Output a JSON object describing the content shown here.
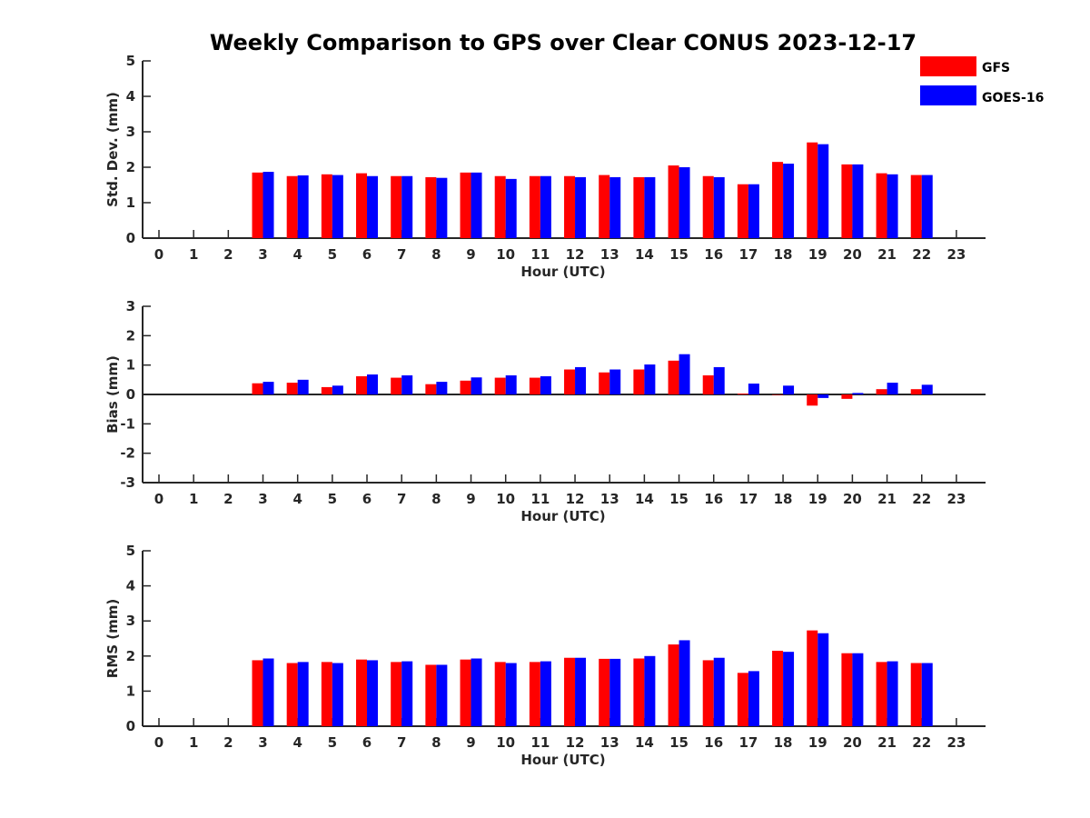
{
  "colors": {
    "gfs": "#ff0000",
    "goes": "#0000ff",
    "axis": "#262626"
  },
  "chart_data": {
    "type": "bar",
    "title": "Weekly Comparison to GPS over Clear CONUS 2023-12-17",
    "legend": {
      "placement": "top-right",
      "entries": [
        {
          "name": "GFS",
          "color": "#ff0000"
        },
        {
          "name": "GOES-16",
          "color": "#0000ff"
        }
      ]
    },
    "categories": [
      "0",
      "1",
      "2",
      "3",
      "4",
      "5",
      "6",
      "7",
      "8",
      "9",
      "10",
      "11",
      "12",
      "13",
      "14",
      "15",
      "16",
      "17",
      "18",
      "19",
      "20",
      "21",
      "22",
      "23"
    ],
    "panels": [
      {
        "ylabel": "Std. Dev. (mm)",
        "xlabel": "Hour (UTC)",
        "ylim": [
          0,
          5
        ],
        "yticks": [
          "0",
          "1",
          "2",
          "3",
          "4",
          "5"
        ],
        "zero_line": false,
        "series": [
          {
            "name": "GFS",
            "values": [
              null,
              null,
              null,
              1.85,
              1.75,
              1.8,
              1.83,
              1.75,
              1.72,
              1.85,
              1.75,
              1.75,
              1.75,
              1.78,
              1.72,
              2.05,
              1.75,
              1.52,
              2.15,
              2.7,
              2.08,
              1.83,
              1.78,
              null
            ]
          },
          {
            "name": "GOES-16",
            "values": [
              null,
              null,
              null,
              1.87,
              1.77,
              1.78,
              1.75,
              1.75,
              1.7,
              1.85,
              1.67,
              1.75,
              1.72,
              1.72,
              1.72,
              2.0,
              1.72,
              1.52,
              2.1,
              2.65,
              2.08,
              1.8,
              1.78,
              null
            ]
          }
        ]
      },
      {
        "ylabel": "Bias (mm)",
        "xlabel": "Hour (UTC)",
        "ylim": [
          -3,
          3
        ],
        "yticks": [
          "-3",
          "-2",
          "-1",
          "0",
          "1",
          "2",
          "3"
        ],
        "zero_line": true,
        "series": [
          {
            "name": "GFS",
            "values": [
              null,
              null,
              null,
              0.38,
              0.4,
              0.25,
              0.62,
              0.57,
              0.35,
              0.47,
              0.57,
              0.57,
              0.85,
              0.75,
              0.85,
              1.15,
              0.65,
              0.03,
              0.0,
              -0.38,
              -0.15,
              0.18,
              0.18,
              null
            ]
          },
          {
            "name": "GOES-16",
            "values": [
              null,
              null,
              null,
              0.43,
              0.5,
              0.3,
              0.68,
              0.65,
              0.43,
              0.58,
              0.65,
              0.62,
              0.93,
              0.85,
              1.02,
              1.37,
              0.93,
              0.37,
              0.3,
              -0.12,
              0.05,
              0.4,
              0.33,
              null
            ]
          }
        ]
      },
      {
        "ylabel": "RMS (mm)",
        "xlabel": "Hour (UTC)",
        "ylim": [
          0,
          5
        ],
        "yticks": [
          "0",
          "1",
          "2",
          "3",
          "4",
          "5"
        ],
        "zero_line": false,
        "series": [
          {
            "name": "GFS",
            "values": [
              null,
              null,
              null,
              1.88,
              1.8,
              1.83,
              1.9,
              1.83,
              1.75,
              1.9,
              1.83,
              1.83,
              1.95,
              1.92,
              1.93,
              2.33,
              1.88,
              1.52,
              2.15,
              2.73,
              2.08,
              1.83,
              1.8,
              null
            ]
          },
          {
            "name": "GOES-16",
            "values": [
              null,
              null,
              null,
              1.93,
              1.83,
              1.8,
              1.88,
              1.85,
              1.75,
              1.93,
              1.8,
              1.85,
              1.95,
              1.92,
              2.0,
              2.45,
              1.95,
              1.57,
              2.12,
              2.65,
              2.08,
              1.85,
              1.8,
              null
            ]
          }
        ]
      }
    ]
  }
}
